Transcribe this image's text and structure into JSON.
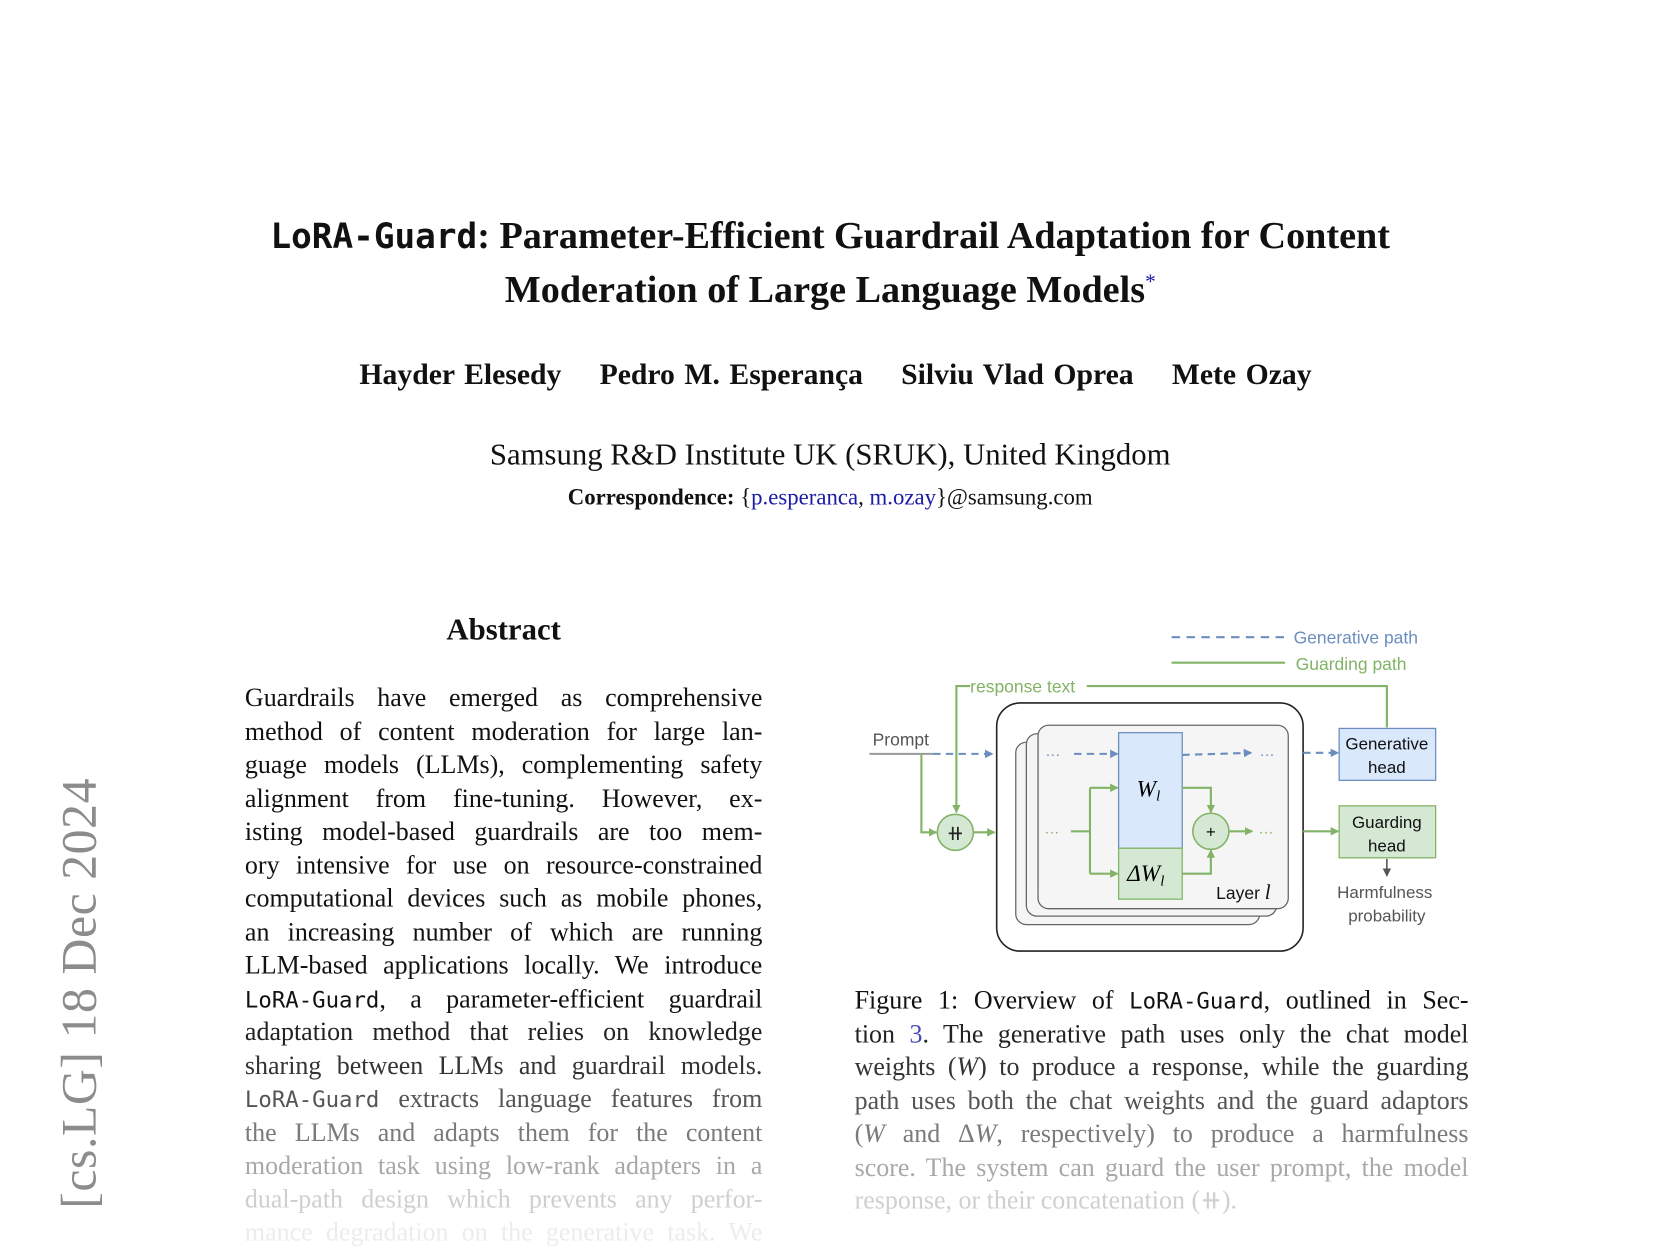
{
  "sidebar": {
    "arxiv_stamp": "[cs.LG]  18 Dec 2024"
  },
  "title": {
    "line1_mono": "LoRA-Guard",
    "line1_rest": ": Parameter-Efficient Guardrail Adaptation for Content",
    "line2": "Moderation of Large Language Models",
    "footnote_mark": "*"
  },
  "authors": [
    "Hayder Elesedy",
    "Pedro M. Esperança",
    "Silviu Vlad Oprea",
    "Mete Ozay"
  ],
  "affiliation": "Samsung R&D Institute UK (SRUK), United Kingdom",
  "correspondence": {
    "label": "Correspondence:",
    "open": " {",
    "email1": "p.esperanca",
    "sep": ", ",
    "email2": "m.ozay",
    "close": "}@samsung.com"
  },
  "abstract": {
    "heading": "Abstract",
    "lines": [
      {
        "parts": [
          {
            "t": "Guardrails have emerged as comprehensive"
          }
        ],
        "shade": "#111"
      },
      {
        "parts": [
          {
            "t": "method of content moderation for large lan-"
          }
        ],
        "shade": "#111"
      },
      {
        "parts": [
          {
            "t": "guage models (LLMs), complementing safety"
          }
        ],
        "shade": "#111"
      },
      {
        "parts": [
          {
            "t": "alignment from fine-tuning.   However, ex-"
          }
        ],
        "shade": "#111"
      },
      {
        "parts": [
          {
            "t": "isting model-based guardrails are too mem-"
          }
        ],
        "shade": "#111"
      },
      {
        "parts": [
          {
            "t": "ory intensive for use on resource-constrained"
          }
        ],
        "shade": "#111"
      },
      {
        "parts": [
          {
            "t": "computational devices such as mobile phones,"
          }
        ],
        "shade": "#111"
      },
      {
        "parts": [
          {
            "t": "an increasing number of which are running"
          }
        ],
        "shade": "#111"
      },
      {
        "parts": [
          {
            "t": "LLM-based applications locally. We introduce"
          }
        ],
        "shade": "#111"
      },
      {
        "parts": [
          {
            "t": "LoRA-Guard",
            "s": "mono"
          },
          {
            "t": ", a parameter-efficient guardrail"
          }
        ],
        "shade": "#111"
      },
      {
        "parts": [
          {
            "t": "adaptation method that relies on knowledge"
          }
        ],
        "shade": "#222"
      },
      {
        "parts": [
          {
            "t": "sharing between LLMs and guardrail models."
          }
        ],
        "shade": "#333"
      },
      {
        "parts": [
          {
            "t": "LoRA-Guard",
            "s": "mono"
          },
          {
            "t": " extracts language features from"
          }
        ],
        "shade": "#555"
      },
      {
        "parts": [
          {
            "t": "the LLMs and adapts them for the content"
          }
        ],
        "shade": "#7a7a7a"
      },
      {
        "parts": [
          {
            "t": "moderation task using low-rank adapters in a"
          }
        ],
        "shade": "#a8a8a8"
      },
      {
        "parts": [
          {
            "t": "dual-path design which prevents any perfor-"
          }
        ],
        "shade": "#cfcfcf"
      },
      {
        "parts": [
          {
            "t": "mance degradation on the generative task. We"
          }
        ],
        "shade": "#ececec"
      }
    ]
  },
  "figure": {
    "legend": {
      "generative": "Generative path",
      "guarding": "Guarding path"
    },
    "labels": {
      "response_text": "response text",
      "prompt": "Prompt",
      "concat": "⧺",
      "plus": "+",
      "w": "W",
      "w_sub": "l",
      "delta_w": "ΔW",
      "layer": "Layer ",
      "layer_var": "l",
      "generative_head": [
        "Generative",
        "head"
      ],
      "guarding_head": [
        "Guarding",
        "head"
      ],
      "output": [
        "Harmfulness",
        "probability"
      ],
      "dots": "···"
    },
    "colors": {
      "generative": "#6c8ebf",
      "guarding": "#82b366",
      "generative_fill": "#dae8fc",
      "guarding_fill": "#d5e8d4"
    },
    "caption_lines": [
      {
        "parts": [
          {
            "t": "Figure 1:  Overview of "
          },
          {
            "t": "LoRA-Guard",
            "s": "mono"
          },
          {
            "t": ", outlined in Sec-"
          }
        ],
        "shade": "#111"
      },
      {
        "parts": [
          {
            "t": "tion "
          },
          {
            "t": "3",
            "s": "link"
          },
          {
            "t": ".  The generative path uses only the chat model"
          }
        ],
        "shade": "#222"
      },
      {
        "parts": [
          {
            "t": "weights ("
          },
          {
            "t": "W",
            "s": "ital"
          },
          {
            "t": ") to produce a response, while the guarding"
          }
        ],
        "shade": "#333"
      },
      {
        "parts": [
          {
            "t": "path uses both the chat weights and the guard adaptors"
          }
        ],
        "shade": "#555"
      },
      {
        "parts": [
          {
            "t": "("
          },
          {
            "t": "W",
            "s": "ital"
          },
          {
            "t": " and Δ"
          },
          {
            "t": "W",
            "s": "ital"
          },
          {
            "t": ", respectively) to produce a harmfulness"
          }
        ],
        "shade": "#7a7a7a"
      },
      {
        "parts": [
          {
            "t": "score. The system can guard the user prompt, the model"
          }
        ],
        "shade": "#a8a8a8"
      },
      {
        "parts": [
          {
            "t": "response, or their concatenation (⧺)."
          }
        ],
        "shade": "#cfcfcf",
        "last": true
      }
    ]
  }
}
